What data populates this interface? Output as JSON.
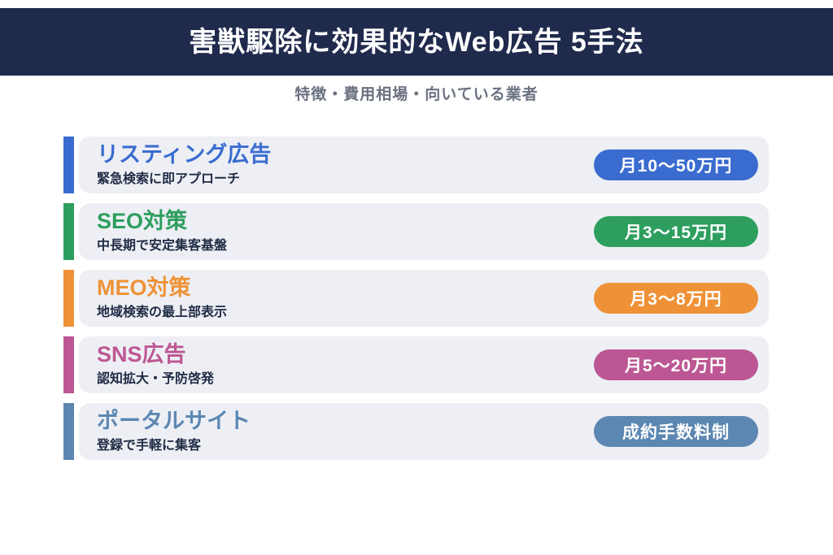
{
  "header": {
    "title": "害獣駆除に効果的なWeb広告 5手法",
    "bg_color": "#1f2a4c",
    "text_color": "#ffffff"
  },
  "subtitle": {
    "text": "特徴・費用相場・向いている業者",
    "text_color": "#6b7280"
  },
  "list": {
    "card_bg_color": "#edeff4",
    "desc_text_color": "#1f2a44",
    "rows": [
      {
        "title": "リスティング広告",
        "description": "緊急検索に即アプローチ",
        "badge": "月10〜50万円",
        "color": "#3a6cd0"
      },
      {
        "title": "SEO対策",
        "description": "中長期で安定集客基盤",
        "badge": "月3〜15万円",
        "color": "#2e9e5f"
      },
      {
        "title": "MEO対策",
        "description": "地域検索の最上部表示",
        "badge": "月3〜8万円",
        "color": "#ef9237"
      },
      {
        "title": "SNS広告",
        "description": "認知拡大・予防啓発",
        "badge": "月5〜20万円",
        "color": "#bd5793"
      },
      {
        "title": "ポータルサイト",
        "description": "登録で手軽に集客",
        "badge": "成約手数料制",
        "color": "#5c87b2"
      }
    ]
  }
}
